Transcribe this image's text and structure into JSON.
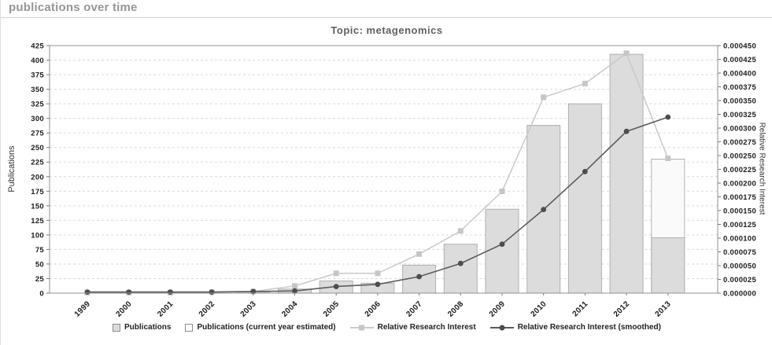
{
  "header": {
    "title": "publications over time"
  },
  "chart_data": {
    "type": "combo",
    "title": "Topic: metagenomics",
    "categories": [
      "1999",
      "2000",
      "2001",
      "2002",
      "2003",
      "2004",
      "2005",
      "2006",
      "2007",
      "2008",
      "2009",
      "2010",
      "2011",
      "2012",
      "2013"
    ],
    "series": [
      {
        "name": "Publications",
        "type": "bar",
        "axis": "left",
        "values": [
          0,
          0,
          0,
          0,
          2,
          7,
          21,
          17,
          48,
          84,
          144,
          288,
          325,
          410,
          95
        ]
      },
      {
        "name": "Publications (current year estimated)",
        "type": "bar",
        "axis": "left",
        "values": [
          null,
          null,
          null,
          null,
          null,
          null,
          null,
          null,
          null,
          null,
          null,
          null,
          null,
          null,
          230
        ],
        "note": "white segment drawn above the actual 2013 count up to the estimated total"
      },
      {
        "name": "Relative Research Interest",
        "type": "line",
        "marker": "square",
        "axis": "right",
        "values": [
          1e-06,
          1e-06,
          1e-06,
          2e-06,
          3e-06,
          1.3e-05,
          3.6e-05,
          3.6e-05,
          7.1e-05,
          0.000113,
          0.000185,
          0.000356,
          0.000381,
          0.000436,
          0.000245
        ]
      },
      {
        "name": "Relative Research Interest (smoothed)",
        "type": "line",
        "marker": "circle",
        "axis": "right",
        "values": [
          2e-06,
          2e-06,
          2e-06,
          2e-06,
          3e-06,
          4e-06,
          1.2e-05,
          1.6e-05,
          3e-05,
          5.4e-05,
          8.9e-05,
          0.000152,
          0.000221,
          0.000294,
          0.00032
        ]
      }
    ],
    "left_axis": {
      "label": "Publications",
      "min": 0,
      "max": 425,
      "step": 25
    },
    "right_axis": {
      "label": "Relative Research Interest",
      "min": 0,
      "max": 0.00045,
      "step": 2.5e-05,
      "decimals": 6
    },
    "grid": "horizontal-dashed",
    "legend_position": "bottom-center",
    "colors": {
      "bar_fill": "#dcdcdc",
      "bar_border": "#b0b0b0",
      "estimated_fill": "#fafafa",
      "rri_line": "#c9c9c9",
      "rri_marker": "#c6c6c6",
      "smoothed_line": "#5c5c5c",
      "smoothed_marker": "#4d4d4d",
      "grid": "#d9d9d9",
      "frame": "#909090",
      "tick": "#777777"
    }
  }
}
